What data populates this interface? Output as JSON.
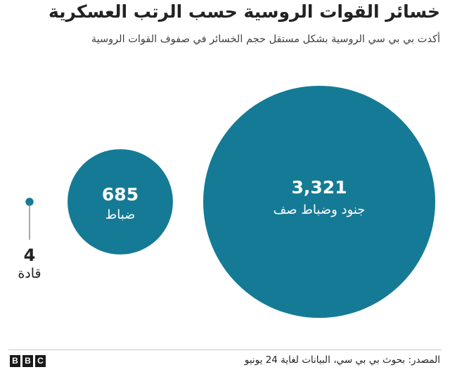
{
  "title": "خسائر القوات الروسية حسب الرتب العسكرية",
  "subtitle": "أكدت بي بي سي الروسية بشكل مستقل حجم الخسائر في صفوف القوات الروسية",
  "source": "المصدر: بحوث بي بي سي، البيانات لغاية 24 يونيو",
  "logo": {
    "letters": [
      "B",
      "B",
      "C"
    ]
  },
  "colors": {
    "bubble": "#157a96",
    "bubble_text": "#ffffff",
    "leader": "#6e6e6e"
  },
  "chart_data": {
    "type": "bubble",
    "title": "خسائر القوات الروسية حسب الرتب العسكرية",
    "subtitle": "أكدت بي بي سي الروسية بشكل مستقل حجم الخسائر في صفوف القوات الروسية",
    "encoding": "circle area proportional to value",
    "series": [
      {
        "label": "قادة",
        "value": 4,
        "value_label": "4"
      },
      {
        "label": "ضباط",
        "value": 685,
        "value_label": "685"
      },
      {
        "label": "جنود وضباط صف",
        "value": 3321,
        "value_label": "3,321"
      }
    ],
    "source": "المصدر: بحوث بي بي سي، البيانات لغاية 24 يونيو"
  }
}
